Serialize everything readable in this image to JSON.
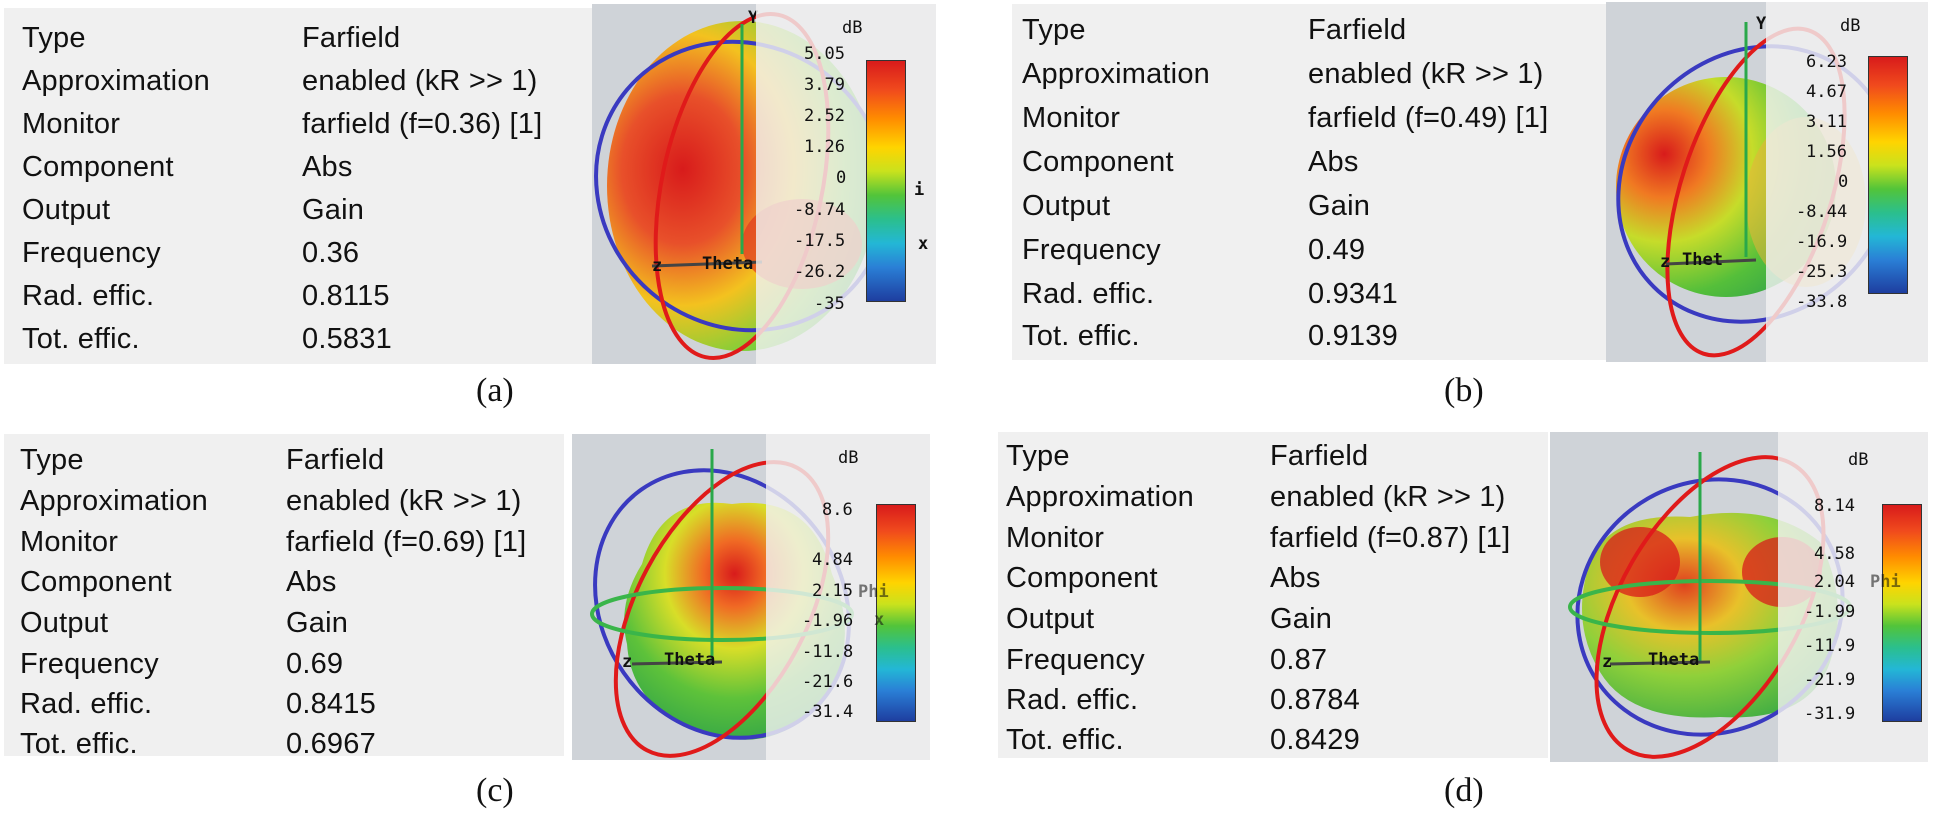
{
  "panels": [
    {
      "id": "a",
      "caption": "(a)",
      "rows": [
        {
          "label": "Type",
          "value": "Farfield"
        },
        {
          "label": "Approximation",
          "value": "enabled (kR >> 1)"
        },
        {
          "label": "Monitor",
          "value": "farfield (f=0.36) [1]"
        },
        {
          "label": "Component",
          "value": "Abs"
        },
        {
          "label": "Output",
          "value": "Gain"
        },
        {
          "label": "Frequency",
          "value": "0.36"
        },
        {
          "label": "Rad. effic.",
          "value": "0.8115"
        },
        {
          "label": "Tot. effic.",
          "value": "0.5831"
        }
      ],
      "legend_unit": "dB",
      "legend_ticks": [
        "5.05",
        "3.79",
        "2.52",
        "1.26",
        "0",
        "-8.74",
        "-17.5",
        "-26.2",
        "-35"
      ],
      "axis_labels": {
        "y": "Y",
        "z": "z",
        "theta": "Theta",
        "phi": "i",
        "x": "x"
      }
    },
    {
      "id": "b",
      "caption": "(b)",
      "rows": [
        {
          "label": "Type",
          "value": "Farfield"
        },
        {
          "label": "Approximation",
          "value": "enabled (kR >> 1)"
        },
        {
          "label": "Monitor",
          "value": "farfield (f=0.49) [1]"
        },
        {
          "label": "Component",
          "value": "Abs"
        },
        {
          "label": "Output",
          "value": "Gain"
        },
        {
          "label": "Frequency",
          "value": "0.49"
        },
        {
          "label": "Rad. effic.",
          "value": "0.9341"
        },
        {
          "label": "Tot. effic.",
          "value": "0.9139"
        }
      ],
      "legend_unit": "dB",
      "legend_ticks": [
        "6.23",
        "4.67",
        "3.11",
        "1.56",
        "0",
        "-8.44",
        "-16.9",
        "-25.3",
        "-33.8"
      ],
      "axis_labels": {
        "y": "Y",
        "z": "z",
        "theta": "Thet",
        "phi": "",
        "x": ""
      }
    },
    {
      "id": "c",
      "caption": "(c)",
      "rows": [
        {
          "label": "Type",
          "value": "Farfield"
        },
        {
          "label": "Approximation",
          "value": "enabled (kR >> 1)"
        },
        {
          "label": "Monitor",
          "value": "farfield (f=0.69) [1]"
        },
        {
          "label": "Component",
          "value": "Abs"
        },
        {
          "label": "Output",
          "value": "Gain"
        },
        {
          "label": "Frequency",
          "value": "0.69"
        },
        {
          "label": "Rad. effic.",
          "value": "0.8415"
        },
        {
          "label": "Tot. effic.",
          "value": "0.6967"
        }
      ],
      "legend_unit": "dB",
      "legend_ticks": [
        "8.6",
        "4.84",
        "2.15",
        "-1.96",
        "-11.8",
        "-21.6",
        "-31.4"
      ],
      "axis_labels": {
        "y": "",
        "z": "z",
        "theta": "Theta",
        "phi": "Phi",
        "x": "x"
      }
    },
    {
      "id": "d",
      "caption": "(d)",
      "rows": [
        {
          "label": "Type",
          "value": "Farfield"
        },
        {
          "label": "Approximation",
          "value": "enabled (kR >> 1)"
        },
        {
          "label": "Monitor",
          "value": "farfield (f=0.87) [1]"
        },
        {
          "label": "Component",
          "value": "Abs"
        },
        {
          "label": "Output",
          "value": "Gain"
        },
        {
          "label": "Frequency",
          "value": "0.87"
        },
        {
          "label": "Rad. effic.",
          "value": "0.8784"
        },
        {
          "label": "Tot. effic.",
          "value": "0.8429"
        }
      ],
      "legend_unit": "dB",
      "legend_ticks": [
        "8.14",
        "4.58",
        "2.04",
        "-1.99",
        "-11.9",
        "-21.9",
        "-31.9"
      ],
      "axis_labels": {
        "y": "",
        "z": "z",
        "theta": "Theta",
        "phi": "Phi",
        "x": ""
      }
    }
  ]
}
